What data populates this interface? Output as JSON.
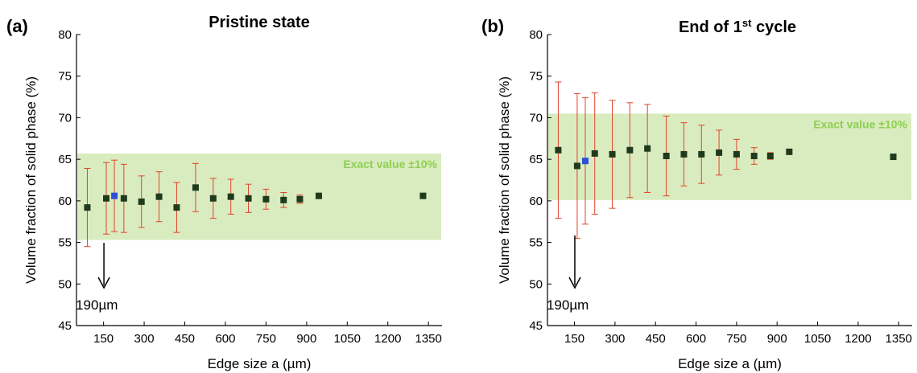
{
  "chart_data": [
    {
      "type": "scatter",
      "panel_label": "(a)",
      "title": "Pristine state",
      "title_sup": "",
      "title_suffix": "",
      "xlabel": "Edge size a (µm)",
      "ylabel": "Volume fraction of solid phase (%)",
      "xlim": [
        50,
        1400
      ],
      "ylim": [
        45,
        80
      ],
      "xticks": [
        150,
        300,
        450,
        600,
        750,
        900,
        1050,
        1200,
        1350
      ],
      "yticks": [
        45,
        50,
        55,
        60,
        65,
        70,
        75,
        80
      ],
      "band": {
        "label": "Exact value ±10%",
        "y0": 55.3,
        "y1": 65.7,
        "color": "#d9ecbf",
        "text_color": "#8fce52"
      },
      "annotation": {
        "text": "190µm",
        "x": 190
      },
      "colors": {
        "marker": "#1f3a1c",
        "highlight": "#2b4fd8",
        "error": "#e0442b"
      },
      "points": [
        {
          "x": 90,
          "y": 59.2,
          "err": 4.7
        },
        {
          "x": 160,
          "y": 60.3,
          "err": 4.3
        },
        {
          "x": 190,
          "y": 60.6,
          "err": 4.3,
          "highlight": true
        },
        {
          "x": 225,
          "y": 60.3,
          "err": 4.1
        },
        {
          "x": 290,
          "y": 59.9,
          "err": 3.1
        },
        {
          "x": 355,
          "y": 60.5,
          "err": 3.0
        },
        {
          "x": 420,
          "y": 59.2,
          "err": 3.0
        },
        {
          "x": 490,
          "y": 61.6,
          "err": 2.9
        },
        {
          "x": 555,
          "y": 60.3,
          "err": 2.4
        },
        {
          "x": 620,
          "y": 60.5,
          "err": 2.1
        },
        {
          "x": 685,
          "y": 60.3,
          "err": 1.7
        },
        {
          "x": 750,
          "y": 60.2,
          "err": 1.2
        },
        {
          "x": 815,
          "y": 60.1,
          "err": 0.9
        },
        {
          "x": 875,
          "y": 60.2,
          "err": 0.5
        },
        {
          "x": 945,
          "y": 60.6,
          "err": 0.1
        },
        {
          "x": 1330,
          "y": 60.6,
          "err": 0
        }
      ]
    },
    {
      "type": "scatter",
      "panel_label": "(b)",
      "title": "End of 1",
      "title_sup": "st",
      "title_suffix": " cycle",
      "xlabel": "Edge size a (µm)",
      "ylabel": "Volume fraction of solid phase (%)",
      "xlim": [
        50,
        1400
      ],
      "ylim": [
        45,
        80
      ],
      "xticks": [
        150,
        300,
        450,
        600,
        750,
        900,
        1050,
        1200,
        1350
      ],
      "yticks": [
        45,
        50,
        55,
        60,
        65,
        70,
        75,
        80
      ],
      "band": {
        "label": "Exact value ±10%",
        "y0": 60.1,
        "y1": 70.5,
        "color": "#d9ecbf",
        "text_color": "#8fce52"
      },
      "annotation": {
        "text": "190µm",
        "x": 190
      },
      "colors": {
        "marker": "#1f3a1c",
        "highlight": "#2b4fd8",
        "error": "#e0442b"
      },
      "points": [
        {
          "x": 90,
          "y": 66.1,
          "err": 8.2
        },
        {
          "x": 160,
          "y": 64.2,
          "err": 8.7
        },
        {
          "x": 190,
          "y": 64.8,
          "err": 7.6,
          "highlight": true
        },
        {
          "x": 225,
          "y": 65.7,
          "err": 7.3
        },
        {
          "x": 290,
          "y": 65.6,
          "err": 6.5
        },
        {
          "x": 355,
          "y": 66.1,
          "err": 5.7
        },
        {
          "x": 420,
          "y": 66.3,
          "err": 5.3
        },
        {
          "x": 490,
          "y": 65.4,
          "err": 4.8
        },
        {
          "x": 555,
          "y": 65.6,
          "err": 3.8
        },
        {
          "x": 620,
          "y": 65.6,
          "err": 3.5
        },
        {
          "x": 685,
          "y": 65.8,
          "err": 2.7
        },
        {
          "x": 750,
          "y": 65.6,
          "err": 1.8
        },
        {
          "x": 815,
          "y": 65.4,
          "err": 1.0
        },
        {
          "x": 875,
          "y": 65.4,
          "err": 0.4
        },
        {
          "x": 945,
          "y": 65.9,
          "err": 0.2
        },
        {
          "x": 1330,
          "y": 65.3,
          "err": 0
        }
      ]
    }
  ]
}
